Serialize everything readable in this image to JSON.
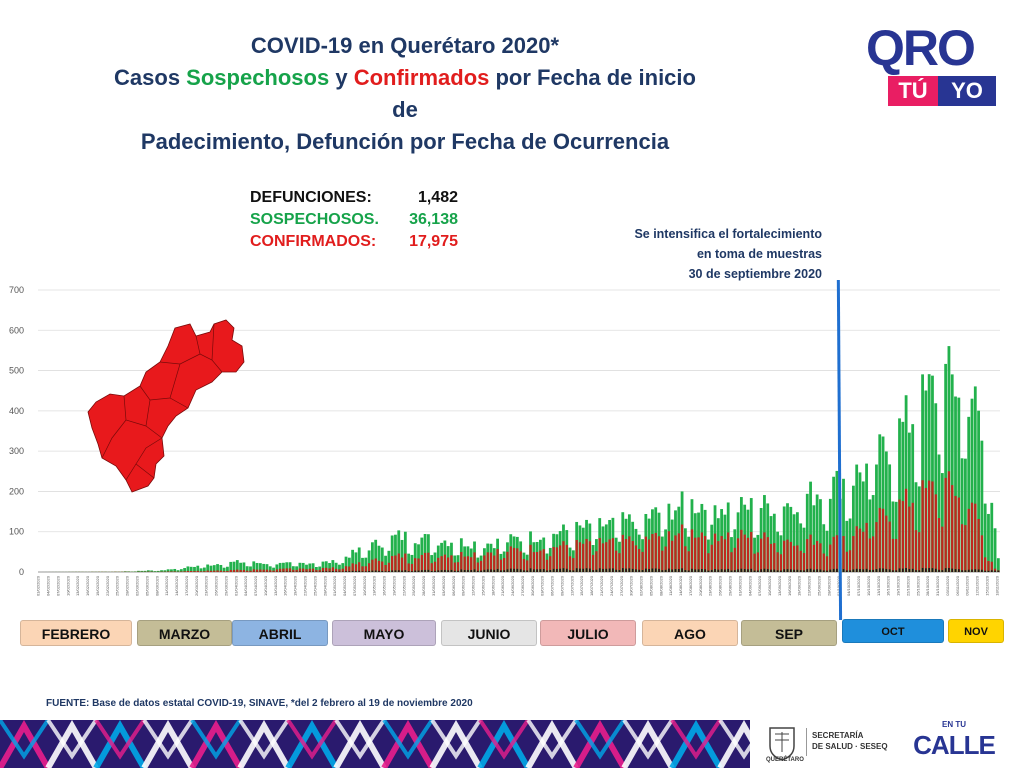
{
  "header": {
    "line1": "COVID-19 en Querétaro 2020*",
    "line2_a": "Casos ",
    "line2_b": "Sospechosos",
    "line2_c": " y ",
    "line2_d": "Confirmados",
    "line2_e": " por Fecha de inicio de",
    "line3": "Padecimiento, Defunción por Fecha de Ocurrencia"
  },
  "logo": {
    "oro": "QRO",
    "tu": "TÚ",
    "yo": "YO"
  },
  "stats": {
    "defunciones_label": "DEFUNCIONES:",
    "defunciones_value": "1,482",
    "sospechosos_label": "SOSPECHOSOS.",
    "sospechosos_value": "36,138",
    "confirmados_label": "CONFIRMADOS:",
    "confirmados_value": "17,975"
  },
  "annotation": {
    "line1": "Se intensifica el fortalecimiento",
    "line2": "en toma de muestras",
    "line3": "30 de septiembre 2020"
  },
  "months": [
    {
      "label": "FEBRERO",
      "color": "#fbd5b5"
    },
    {
      "label": "MARZO",
      "color": "#c4bd97"
    },
    {
      "label": "ABRIL",
      "color": "#8db4e2"
    },
    {
      "label": "MAYO",
      "color": "#ccc0da"
    },
    {
      "label": "JUNIO",
      "color": "#e5e5e5"
    },
    {
      "label": "JULIO",
      "color": "#f2b8b8"
    },
    {
      "label": "AGO",
      "color": "#fbd5b5"
    },
    {
      "label": "SEP",
      "color": "#c4bd97"
    },
    {
      "label": "OCT",
      "color": "#1f8fdc"
    },
    {
      "label": "NOV",
      "color": "#ffd400"
    }
  ],
  "source": "FUENTE: Base de datos estatal COVID-19, SINAVE, *del 2 febrero al 19 de noviembre 2020",
  "footer": {
    "gov_text": "QUERÉTARO",
    "salud_line1": "SECRETARÍA",
    "salud_line2": "DE SALUD · SESEQ",
    "encalle_top": "EN TU",
    "encalle_main": "CALLE"
  },
  "colors": {
    "sospechosos": "#22b14c",
    "confirmados": "#c0281e",
    "defunciones": "#1a1a1a",
    "marker": "#1f6fd0"
  },
  "chart_data": {
    "type": "bar",
    "start_date": "01/02/2020",
    "end_date": "18/11/2020",
    "ylim": [
      0,
      700
    ],
    "yticks": [
      0,
      100,
      200,
      300,
      400,
      500,
      600,
      700
    ],
    "marker_date": "30/09/2020",
    "series": [
      {
        "name": "SOSPECHOSOS",
        "anchors": [
          [
            "01/02/2020",
            0
          ],
          [
            "25/02/2020",
            1
          ],
          [
            "10/03/2020",
            5
          ],
          [
            "20/03/2020",
            15
          ],
          [
            "01/04/2020",
            25
          ],
          [
            "15/04/2020",
            20
          ],
          [
            "30/04/2020",
            25
          ],
          [
            "10/05/2020",
            60
          ],
          [
            "20/05/2020",
            90
          ],
          [
            "01/06/2020",
            80
          ],
          [
            "15/06/2020",
            70
          ],
          [
            "01/07/2020",
            90
          ],
          [
            "15/07/2020",
            110
          ],
          [
            "01/08/2020",
            130
          ],
          [
            "15/08/2020",
            170
          ],
          [
            "01/09/2020",
            160
          ],
          [
            "15/09/2020",
            170
          ],
          [
            "30/09/2020",
            220
          ],
          [
            "10/10/2020",
            260
          ],
          [
            "20/10/2020",
            360
          ],
          [
            "01/11/2020",
            480
          ],
          [
            "10/11/2020",
            450
          ],
          [
            "14/11/2020",
            280
          ],
          [
            "17/11/2020",
            130
          ],
          [
            "18/11/2020",
            40
          ]
        ]
      },
      {
        "name": "CONFIRMADOS",
        "anchors": [
          [
            "01/02/2020",
            0
          ],
          [
            "10/03/2020",
            1
          ],
          [
            "01/04/2020",
            5
          ],
          [
            "01/05/2020",
            10
          ],
          [
            "20/05/2020",
            40
          ],
          [
            "10/06/2020",
            45
          ],
          [
            "01/07/2020",
            60
          ],
          [
            "15/07/2020",
            70
          ],
          [
            "01/08/2020",
            80
          ],
          [
            "15/08/2020",
            100
          ],
          [
            "01/09/2020",
            90
          ],
          [
            "15/09/2020",
            80
          ],
          [
            "30/09/2020",
            80
          ],
          [
            "10/10/2020",
            120
          ],
          [
            "20/10/2020",
            170
          ],
          [
            "01/11/2020",
            220
          ],
          [
            "10/11/2020",
            180
          ],
          [
            "14/11/2020",
            60
          ],
          [
            "17/11/2020",
            10
          ],
          [
            "18/11/2020",
            5
          ]
        ]
      },
      {
        "name": "DEFUNCIONES",
        "anchors": [
          [
            "01/02/2020",
            0
          ],
          [
            "01/04/2020",
            0
          ],
          [
            "01/05/2020",
            2
          ],
          [
            "01/06/2020",
            5
          ],
          [
            "01/07/2020",
            8
          ],
          [
            "01/08/2020",
            8
          ],
          [
            "01/09/2020",
            7
          ],
          [
            "01/10/2020",
            7
          ],
          [
            "01/11/2020",
            9
          ],
          [
            "18/11/2020",
            4
          ]
        ]
      }
    ]
  }
}
